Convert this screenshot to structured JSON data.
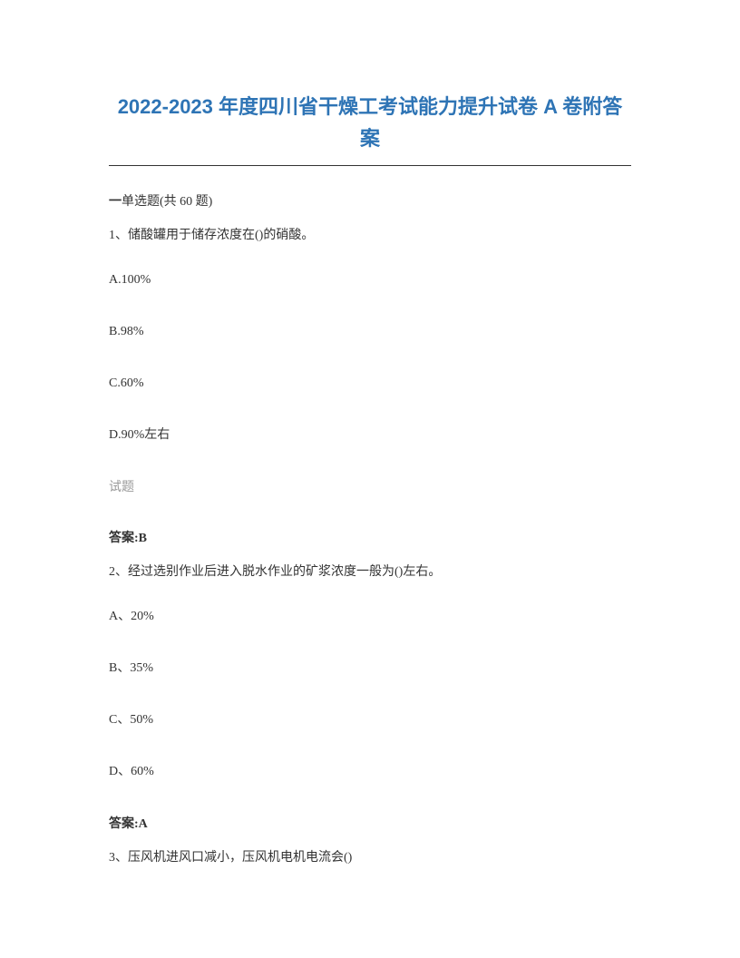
{
  "title": "2022-2023 年度四川省干燥工考试能力提升试卷 A 卷附答案",
  "section": {
    "prefix": "一",
    "label": "单选题(共 60 题)"
  },
  "questions": [
    {
      "number": "1、",
      "stem": "储酸罐用于储存浓度在()的硝酸。",
      "options": {
        "a": "A.100%",
        "b": "B.98%",
        "c": "C.60%",
        "d": "D.90%左右"
      },
      "hint": "试题",
      "answer_label": "答案:",
      "answer_value": "B"
    },
    {
      "number": "2、",
      "stem": "经过选别作业后进入脱水作业的矿浆浓度一般为()左右。",
      "options": {
        "a": "A、20%",
        "b": "B、35%",
        "c": "C、50%",
        "d": "D、60%"
      },
      "answer_label": "答案:",
      "answer_value": "A"
    },
    {
      "number": "3、",
      "stem": "压风机进风口减小，压风机电机电流会()"
    }
  ]
}
